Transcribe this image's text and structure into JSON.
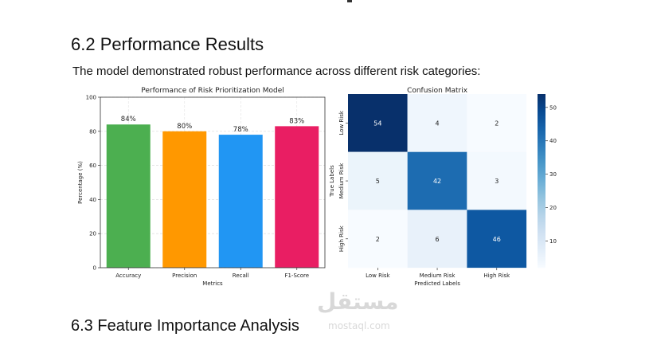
{
  "document": {
    "top_fragment": "p",
    "section_62_title": "6.2 Performance Results",
    "intro_text": "The model demonstrated robust performance across different risk categories:",
    "section_63_title": "6.3 Feature Importance Analysis",
    "watermark": {
      "main": "مستقل",
      "sub": "mostaql.com"
    }
  },
  "chart_data": [
    {
      "type": "bar",
      "title": "Performance of Risk Prioritization Model",
      "xlabel": "Metrics",
      "ylabel": "Percentage (%)",
      "categories": [
        "Accuracy",
        "Precision",
        "Recall",
        "F1-Score"
      ],
      "values": [
        84,
        80,
        78,
        83
      ],
      "data_labels": [
        "84%",
        "80%",
        "78%",
        "83%"
      ],
      "colors": [
        "#4caf50",
        "#ff9800",
        "#2196f3",
        "#e91e63"
      ],
      "ylim": [
        0,
        100
      ],
      "yticks": [
        0,
        20,
        40,
        60,
        80,
        100
      ],
      "grid": true
    },
    {
      "type": "heatmap",
      "title": "Confusion Matrix",
      "xlabel": "Predicted Labels",
      "ylabel": "True Labels",
      "x_categories": [
        "Low Risk",
        "Medium Risk",
        "High Risk"
      ],
      "y_categories": [
        "Low Risk",
        "Medium Risk",
        "High Risk"
      ],
      "values": [
        [
          54,
          4,
          2
        ],
        [
          5,
          42,
          3
        ],
        [
          2,
          6,
          46
        ]
      ],
      "colorbar_ticks": [
        10,
        20,
        30,
        40,
        50
      ],
      "color_range": [
        2,
        54
      ],
      "colormap": "Blues"
    }
  ]
}
